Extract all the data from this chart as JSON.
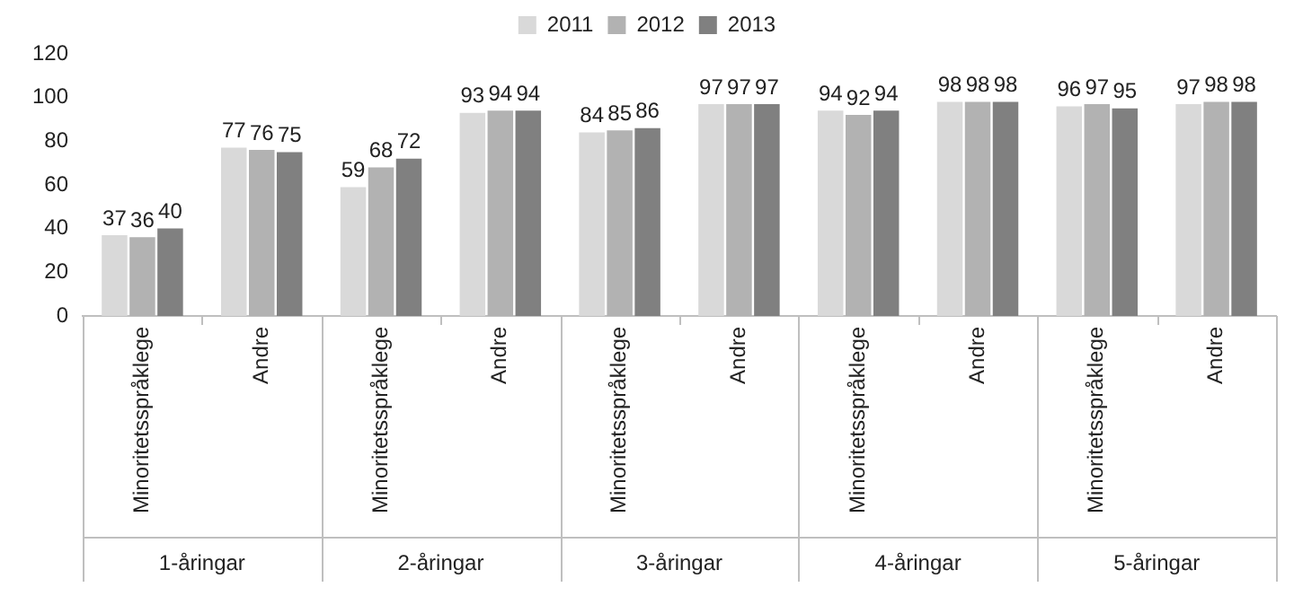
{
  "chart_data": {
    "type": "bar",
    "categories": [
      "Minoritetsspråklege",
      "Andre",
      "Minoritetsspråklege",
      "Andre",
      "Minoritetsspråklege",
      "Andre",
      "Minoritetsspråklege",
      "Andre",
      "Minoritetsspråklege",
      "Andre"
    ],
    "series": [
      {
        "name": "2011",
        "color": "#d9d9d9",
        "values": [
          37,
          77,
          59,
          93,
          84,
          97,
          94,
          98,
          96,
          97
        ]
      },
      {
        "name": "2012",
        "color": "#b2b2b2",
        "values": [
          36,
          76,
          68,
          94,
          85,
          97,
          92,
          98,
          97,
          98
        ]
      },
      {
        "name": "2013",
        "color": "#808080",
        "values": [
          40,
          75,
          72,
          94,
          86,
          97,
          94,
          98,
          95,
          98
        ]
      }
    ],
    "annotations": [
      "1-åringar",
      "2-åringar",
      "3-åringar",
      "4-åringar",
      "5-åringar"
    ],
    "ylim": [
      0,
      120
    ],
    "yticks": [
      0,
      20,
      40,
      60,
      80,
      100,
      120
    ],
    "grid": false,
    "legend": "top",
    "data_labels": true
  }
}
